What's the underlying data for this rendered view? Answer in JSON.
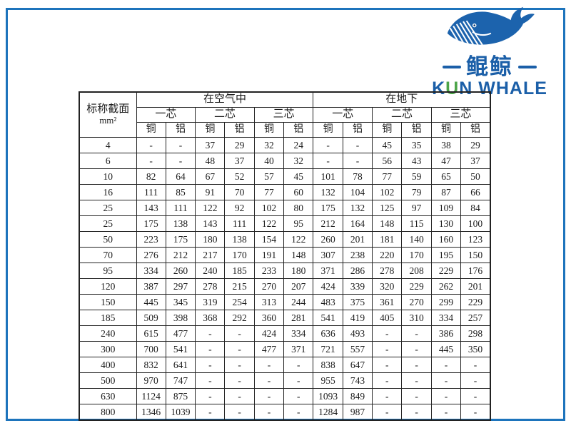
{
  "frame": {
    "border_color": "#1d74bc"
  },
  "logo": {
    "whale_icon": "whale-icon",
    "cn_name": "鲲鲸",
    "en_k": "K",
    "en_u": "U",
    "en_rest": "N WHALE",
    "brand_blue": "#1b5fa8",
    "brand_green": "#4ba447"
  },
  "table": {
    "col0_header_line1": "标称截面",
    "col0_header_line2": "mm²",
    "group_headers": [
      "在空气中",
      "在地下"
    ],
    "core_headers": [
      "一芯",
      "二芯",
      "三芯",
      "一芯",
      "二芯",
      "三芯"
    ],
    "material_headers": [
      "铜",
      "铝",
      "铜",
      "铝",
      "铜",
      "铝",
      "铜",
      "铝",
      "铜",
      "铝",
      "铜",
      "铝"
    ],
    "rows": [
      [
        "4",
        "-",
        "-",
        "37",
        "29",
        "32",
        "24",
        "-",
        "-",
        "45",
        "35",
        "38",
        "29"
      ],
      [
        "6",
        "-",
        "-",
        "48",
        "37",
        "40",
        "32",
        "-",
        "-",
        "56",
        "43",
        "47",
        "37"
      ],
      [
        "10",
        "82",
        "64",
        "67",
        "52",
        "57",
        "45",
        "101",
        "78",
        "77",
        "59",
        "65",
        "50"
      ],
      [
        "16",
        "111",
        "85",
        "91",
        "70",
        "77",
        "60",
        "132",
        "104",
        "102",
        "79",
        "87",
        "66"
      ],
      [
        "25",
        "143",
        "111",
        "122",
        "92",
        "102",
        "80",
        "175",
        "132",
        "125",
        "97",
        "109",
        "84"
      ],
      [
        "25",
        "175",
        "138",
        "143",
        "111",
        "122",
        "95",
        "212",
        "164",
        "148",
        "115",
        "130",
        "100"
      ],
      [
        "50",
        "223",
        "175",
        "180",
        "138",
        "154",
        "122",
        "260",
        "201",
        "181",
        "140",
        "160",
        "123"
      ],
      [
        "70",
        "276",
        "212",
        "217",
        "170",
        "191",
        "148",
        "307",
        "238",
        "220",
        "170",
        "195",
        "150"
      ],
      [
        "95",
        "334",
        "260",
        "240",
        "185",
        "233",
        "180",
        "371",
        "286",
        "278",
        "208",
        "229",
        "176"
      ],
      [
        "120",
        "387",
        "297",
        "278",
        "215",
        "270",
        "207",
        "424",
        "339",
        "320",
        "229",
        "262",
        "201"
      ],
      [
        "150",
        "445",
        "345",
        "319",
        "254",
        "313",
        "244",
        "483",
        "375",
        "361",
        "270",
        "299",
        "229"
      ],
      [
        "185",
        "509",
        "398",
        "368",
        "292",
        "360",
        "281",
        "541",
        "419",
        "405",
        "310",
        "334",
        "257"
      ],
      [
        "240",
        "615",
        "477",
        "-",
        "-",
        "424",
        "334",
        "636",
        "493",
        "-",
        "-",
        "386",
        "298"
      ],
      [
        "300",
        "700",
        "541",
        "-",
        "-",
        "477",
        "371",
        "721",
        "557",
        "-",
        "-",
        "445",
        "350"
      ],
      [
        "400",
        "832",
        "641",
        "-",
        "-",
        "-",
        "-",
        "838",
        "647",
        "-",
        "-",
        "-",
        "-"
      ],
      [
        "500",
        "970",
        "747",
        "-",
        "-",
        "-",
        "-",
        "955",
        "743",
        "-",
        "-",
        "-",
        "-"
      ],
      [
        "630",
        "1124",
        "875",
        "-",
        "-",
        "-",
        "-",
        "1093",
        "849",
        "-",
        "-",
        "-",
        "-"
      ],
      [
        "800",
        "1346",
        "1039",
        "-",
        "-",
        "-",
        "-",
        "1284",
        "987",
        "-",
        "-",
        "-",
        "-"
      ]
    ]
  }
}
